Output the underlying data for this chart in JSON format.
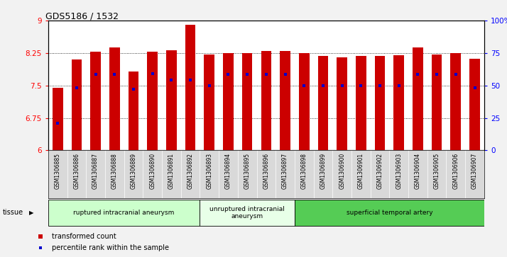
{
  "title": "GDS5186 / 1532",
  "samples": [
    "GSM1306885",
    "GSM1306886",
    "GSM1306887",
    "GSM1306888",
    "GSM1306889",
    "GSM1306890",
    "GSM1306891",
    "GSM1306892",
    "GSM1306893",
    "GSM1306894",
    "GSM1306895",
    "GSM1306896",
    "GSM1306897",
    "GSM1306898",
    "GSM1306899",
    "GSM1306900",
    "GSM1306901",
    "GSM1306902",
    "GSM1306903",
    "GSM1306904",
    "GSM1306905",
    "GSM1306906",
    "GSM1306907"
  ],
  "bar_values": [
    7.45,
    8.1,
    8.28,
    8.38,
    7.82,
    8.28,
    8.32,
    8.9,
    8.22,
    8.25,
    8.25,
    8.3,
    8.3,
    8.25,
    8.18,
    8.15,
    8.18,
    8.18,
    8.2,
    8.38,
    8.22,
    8.25,
    8.12
  ],
  "percentile_values": [
    6.62,
    7.45,
    7.75,
    7.75,
    7.42,
    7.78,
    7.62,
    7.62,
    7.5,
    7.75,
    7.75,
    7.75,
    7.75,
    7.5,
    7.5,
    7.5,
    7.5,
    7.5,
    7.5,
    7.75,
    7.75,
    7.75,
    7.45
  ],
  "groups": [
    {
      "label": "ruptured intracranial aneurysm",
      "start": 0,
      "end": 8,
      "color": "#ccffcc"
    },
    {
      "label": "unruptured intracranial\naneurysm",
      "start": 8,
      "end": 13,
      "color": "#e8ffe8"
    },
    {
      "label": "superficial temporal artery",
      "start": 13,
      "end": 23,
      "color": "#55cc55"
    }
  ],
  "ymin": 6.0,
  "ymax": 9.0,
  "yticks": [
    6,
    6.75,
    7.5,
    8.25,
    9
  ],
  "bar_color": "#cc0000",
  "percentile_color": "#0000cc",
  "fig_bg": "#f2f2f2",
  "plot_bg": "#ffffff",
  "xtick_bg": "#d9d9d9",
  "right_yticks": [
    0,
    25,
    50,
    75,
    100
  ],
  "right_yticklabels": [
    "0",
    "25",
    "50",
    "75",
    "100%"
  ]
}
